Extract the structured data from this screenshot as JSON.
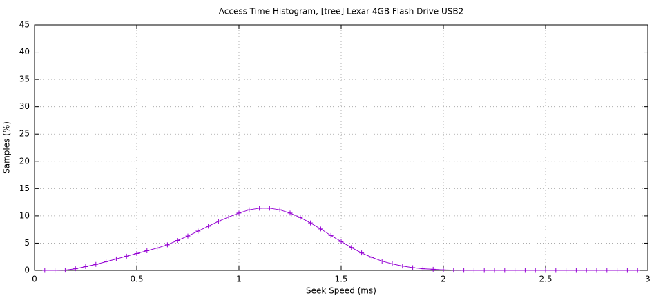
{
  "chart_data": {
    "type": "line",
    "title": "Access Time Histogram, [tree] Lexar 4GB Flash Drive USB2",
    "x_label": "Seek Speed (ms)",
    "y_label": "Samples (%)",
    "x": [
      0.05,
      0.1,
      0.15,
      0.2,
      0.25,
      0.3,
      0.35,
      0.4,
      0.45,
      0.5,
      0.55,
      0.6,
      0.65,
      0.7,
      0.75,
      0.8,
      0.85,
      0.9,
      0.95,
      1.0,
      1.05,
      1.1,
      1.15,
      1.2,
      1.25,
      1.3,
      1.35,
      1.4,
      1.45,
      1.5,
      1.55,
      1.6,
      1.65,
      1.7,
      1.75,
      1.8,
      1.85,
      1.9,
      1.95,
      2.0,
      2.05,
      2.1,
      2.15,
      2.2,
      2.25,
      2.3,
      2.35,
      2.4,
      2.45,
      2.5,
      2.55,
      2.6,
      2.65,
      2.7,
      2.75,
      2.8,
      2.85,
      2.9,
      2.95
    ],
    "values": [
      0,
      0,
      0.05,
      0.3,
      0.7,
      1.1,
      1.6,
      2.1,
      2.6,
      3.1,
      3.6,
      4.1,
      4.7,
      5.5,
      6.3,
      7.2,
      8.1,
      9.0,
      9.8,
      10.5,
      11.1,
      11.4,
      11.4,
      11.1,
      10.5,
      9.7,
      8.7,
      7.6,
      6.4,
      5.3,
      4.2,
      3.2,
      2.4,
      1.7,
      1.2,
      0.8,
      0.5,
      0.3,
      0.2,
      0.1,
      0.05,
      0.02,
      0,
      0,
      0,
      0,
      0,
      0,
      0,
      0,
      0,
      0,
      0,
      0,
      0,
      0,
      0,
      0,
      0
    ],
    "color": "#9400d3",
    "xlim": [
      0,
      3
    ],
    "xticks": [
      0,
      0.5,
      1,
      1.5,
      2,
      2.5,
      3
    ],
    "ylim": [
      0,
      45
    ],
    "yticks": [
      0,
      5,
      10,
      15,
      20,
      25,
      30,
      35,
      40,
      45
    ],
    "grid": true
  }
}
